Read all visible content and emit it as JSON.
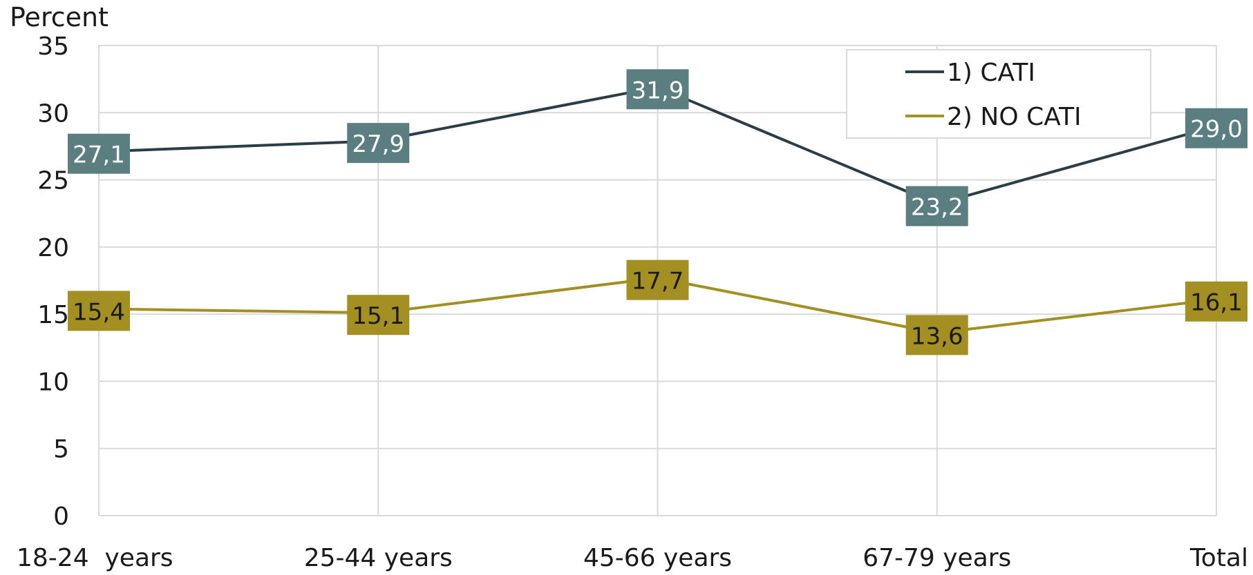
{
  "chart_data": {
    "type": "line",
    "ylabel": "Percent",
    "xlabel": "",
    "categories": [
      "18-24  years",
      "25-44 years",
      "45-66 years",
      "67-79 years",
      "Total"
    ],
    "ylim": [
      0,
      35
    ],
    "yticks": [
      0,
      5,
      10,
      15,
      20,
      25,
      30,
      35
    ],
    "grid": true,
    "legend_position": "top-right",
    "series": [
      {
        "name": "1) CATI",
        "values": [
          27.1,
          27.9,
          31.9,
          23.2,
          29.0
        ],
        "labels": [
          "27,1",
          "27,9",
          "31,9",
          "23,2",
          "29,0"
        ],
        "line_color": "#2b3e48",
        "label_bg": "#5b7f81",
        "label_text_color": "#ffffff"
      },
      {
        "name": "2) NO CATI",
        "values": [
          15.4,
          15.1,
          17.7,
          13.6,
          16.1
        ],
        "labels": [
          "15,4",
          "15,1",
          "17,7",
          "13,6",
          "16,1"
        ],
        "line_color": "#a38f22",
        "label_bg": "#a38f22",
        "label_text_color": "#1a1a1a"
      }
    ]
  }
}
